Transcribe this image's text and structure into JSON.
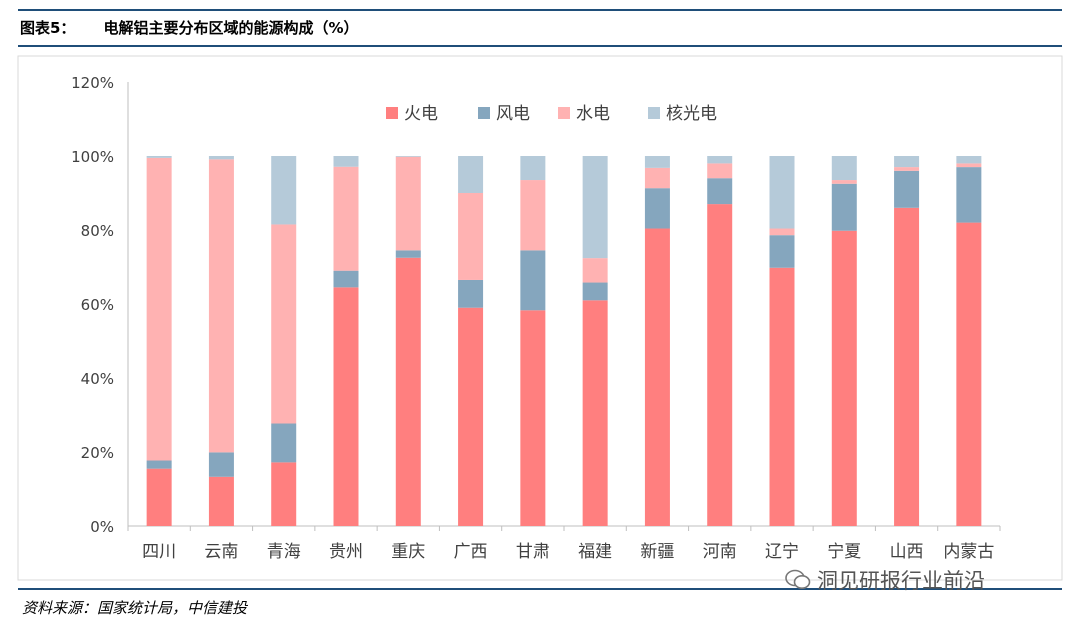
{
  "header": {
    "figure_no": "图表5：",
    "title": "电解铝主要分布区域的能源构成（%）"
  },
  "source": "资料来源：国家统计局，中信建投",
  "watermark": "洞见研报行业前沿",
  "chart_data": {
    "type": "bar",
    "stacked": true,
    "title": "电解铝主要分布区域的能源构成（%）",
    "xlabel": "",
    "ylabel": "",
    "ylim": [
      0,
      120
    ],
    "yticks": [
      0,
      20,
      40,
      60,
      80,
      100,
      120
    ],
    "ytick_labels": [
      "0%",
      "20%",
      "40%",
      "60%",
      "80%",
      "100%",
      "120%"
    ],
    "legend_position": "top-center",
    "categories": [
      "四川",
      "云南",
      "青海",
      "贵州",
      "重庆",
      "广西",
      "甘肃",
      "福建",
      "新疆",
      "河南",
      "辽宁",
      "宁夏",
      "山西",
      "内蒙古"
    ],
    "series": [
      {
        "name": "火电",
        "color": "#ff7f7f",
        "values": [
          15.5,
          13.3,
          17.2,
          64.5,
          72.5,
          59.0,
          58.3,
          61.0,
          80.4,
          87.0,
          69.8,
          79.8,
          86.0,
          82.0
        ]
      },
      {
        "name": "风电",
        "color": "#85a6be",
        "values": [
          2.2,
          6.6,
          10.5,
          4.5,
          2.0,
          7.5,
          16.2,
          4.8,
          10.9,
          7.0,
          8.8,
          12.7,
          10.0,
          15.0
        ]
      },
      {
        "name": "水电",
        "color": "#ffb2b2",
        "values": [
          81.8,
          79.2,
          53.8,
          28.1,
          25.3,
          23.5,
          19.0,
          6.6,
          5.5,
          4.0,
          1.8,
          1.0,
          1.0,
          1.0
        ]
      },
      {
        "name": "核光电",
        "color": "#b5cad9",
        "values": [
          0.5,
          0.9,
          18.5,
          2.9,
          0.2,
          10.0,
          6.5,
          27.6,
          3.2,
          2.0,
          19.6,
          6.5,
          3.0,
          2.0
        ]
      }
    ]
  }
}
